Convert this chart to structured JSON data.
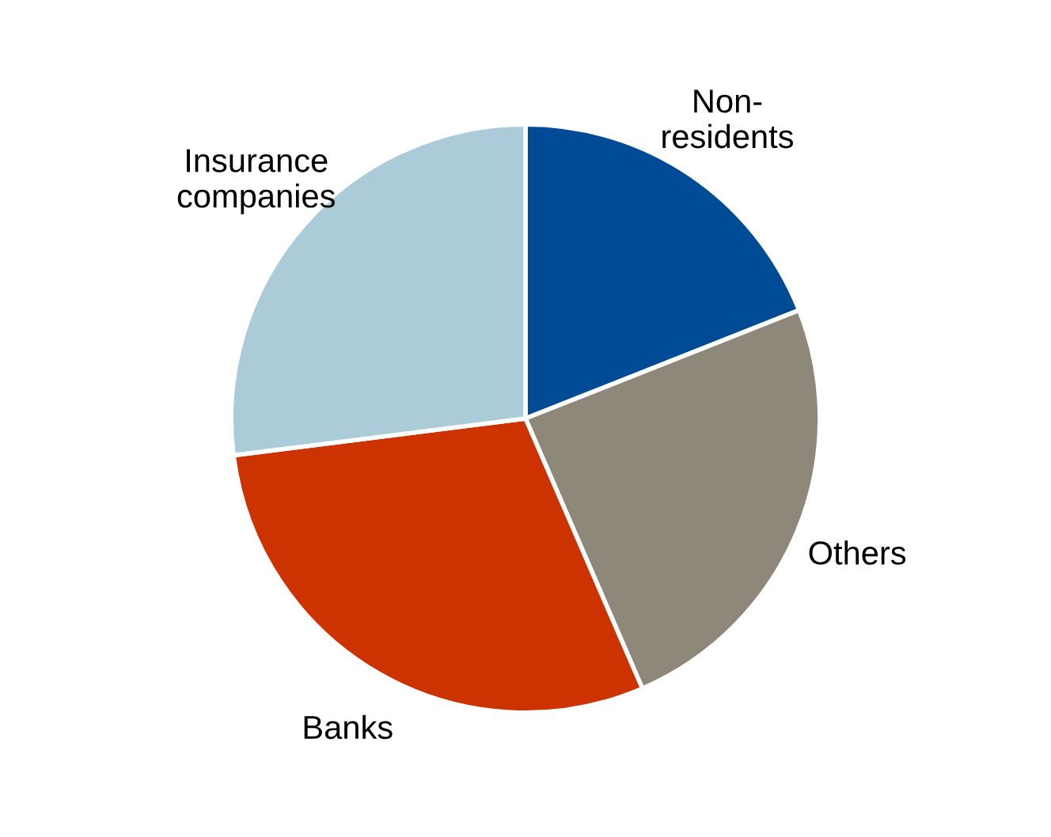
{
  "chart_data": {
    "type": "pie",
    "categories": [
      "Non-\nresidents",
      "Others",
      "Banks",
      "Insurance\ncompanies"
    ],
    "values": [
      19,
      24.5,
      29.5,
      27
    ],
    "colors": [
      "#004b96",
      "#8e887a",
      "#cc3300",
      "#abcbd8"
    ],
    "legend": false
  }
}
